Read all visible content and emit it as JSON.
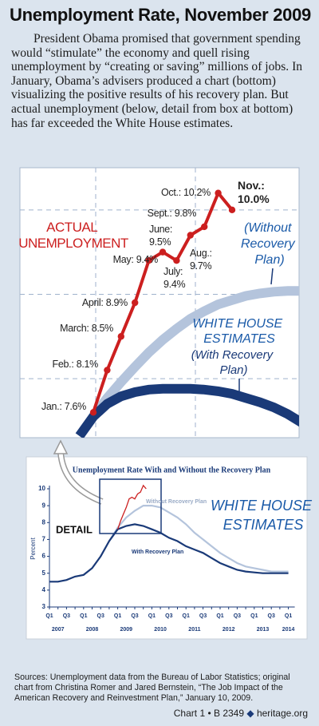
{
  "title": "Unemployment Rate, November 2009",
  "intro": "President Obama promised that government spending would “stimulate” the economy and quell rising unemployment by “creating or saving” millions of jobs. In January, Obama’s advisers produced a chart (bottom) visualizing the positive results of his recovery plan. But actual unemployment (below, detail from box at bottom) has far exceeded the White House estimates.",
  "sources": "Sources: Unemployment data from the Bureau of Labor Statistics; original chart from Christina Romer and Jared Bernstein, “The Job Impact of the American Recovery and Reinvestment Plan,” January 10, 2009.",
  "footer": {
    "chart": "Chart 1 • B 2349",
    "site": "heritage.org"
  },
  "chart_data": [
    {
      "type": "line",
      "categories": [
        null,
        null,
        null,
        null,
        null,
        null,
        null,
        null,
        null,
        null,
        null,
        null,
        null,
        null,
        null,
        null,
        null
      ],
      "ylim": [
        7.3,
        10.5
      ],
      "yticks": [
        8,
        9,
        10
      ],
      "grid": true,
      "series": [
        {
          "name": "ACTUAL UNEMPLOYMENT",
          "color": "#cc1f1f",
          "values": [
            null,
            7.6,
            8.1,
            8.5,
            8.9,
            9.4,
            9.5,
            9.4,
            9.7,
            9.8,
            10.2,
            10.0,
            null,
            null,
            null,
            null,
            null
          ],
          "value_labels": [
            null,
            "Jan.: 7.6%",
            "Feb.: 8.1%",
            "March: 8.5%",
            "April: 8.9%",
            "May: 9.4%",
            "June: 9.5%",
            "July: 9.4%",
            "Aug.: 9.7%",
            "Sept.: 9.8%",
            "Oct.: 10.2%",
            "Nov.: 10.0%",
            null,
            null,
            null,
            null,
            null
          ]
        },
        {
          "name": "(Without Recovery Plan)",
          "color": "#b4c4dc",
          "values": [
            7.32,
            7.55,
            7.77,
            7.96,
            8.14,
            8.31,
            8.46,
            8.59,
            8.71,
            8.8,
            8.88,
            8.93,
            8.98,
            9.01,
            9.03,
            9.04,
            9.04
          ]
        },
        {
          "name": "(With Recovery Plan)",
          "color": "#1a3a78",
          "values": [
            7.32,
            7.55,
            7.7,
            7.79,
            7.84,
            7.87,
            7.88,
            7.88,
            7.88,
            7.87,
            7.85,
            7.82,
            7.77,
            7.72,
            7.66,
            7.58,
            7.48
          ]
        }
      ],
      "annotations": [
        "WHITE HOUSE ESTIMATES"
      ]
    },
    {
      "type": "line",
      "title": "Unemployment Rate With and Without the Recovery Plan",
      "ylabel": "Percent",
      "categories": [
        "Q1",
        null,
        "Q3",
        null,
        "Q1",
        null,
        "Q3",
        null,
        "Q1",
        null,
        "Q3",
        null,
        "Q1",
        null,
        "Q3",
        null,
        "Q1",
        null,
        "Q3",
        null,
        "Q1",
        null,
        "Q3",
        null,
        "Q1",
        null,
        "Q3",
        null,
        "Q1"
      ],
      "year_labels": [
        "2007",
        "2008",
        "2009",
        "2010",
        "2011",
        "2012",
        "2013",
        "2014"
      ],
      "ylim": [
        3,
        10
      ],
      "yticks": [
        3,
        4,
        5,
        6,
        7,
        8,
        9,
        10
      ],
      "series": [
        {
          "name": "With Recovery Plan",
          "color": "#1a3a78",
          "values": [
            4.5,
            4.5,
            4.6,
            4.8,
            4.9,
            5.3,
            6.0,
            6.9,
            7.6,
            7.8,
            7.9,
            7.8,
            7.6,
            7.4,
            7.1,
            6.9,
            6.6,
            6.4,
            6.2,
            5.9,
            5.6,
            5.4,
            5.2,
            5.1,
            5.05,
            5.0,
            5.0,
            5.0,
            5.0
          ]
        },
        {
          "name": "Without Recovery Plan",
          "color": "#b4c4dc",
          "values": [
            null,
            null,
            null,
            null,
            null,
            null,
            null,
            6.9,
            7.7,
            8.3,
            8.7,
            9.0,
            9.0,
            8.9,
            8.6,
            8.3,
            7.9,
            7.4,
            7.0,
            6.6,
            6.2,
            5.9,
            5.6,
            5.4,
            5.3,
            5.2,
            5.1,
            5.1,
            5.1
          ]
        }
      ],
      "annotations": [
        "DETAIL",
        "WHITE HOUSE ESTIMATES"
      ]
    }
  ]
}
